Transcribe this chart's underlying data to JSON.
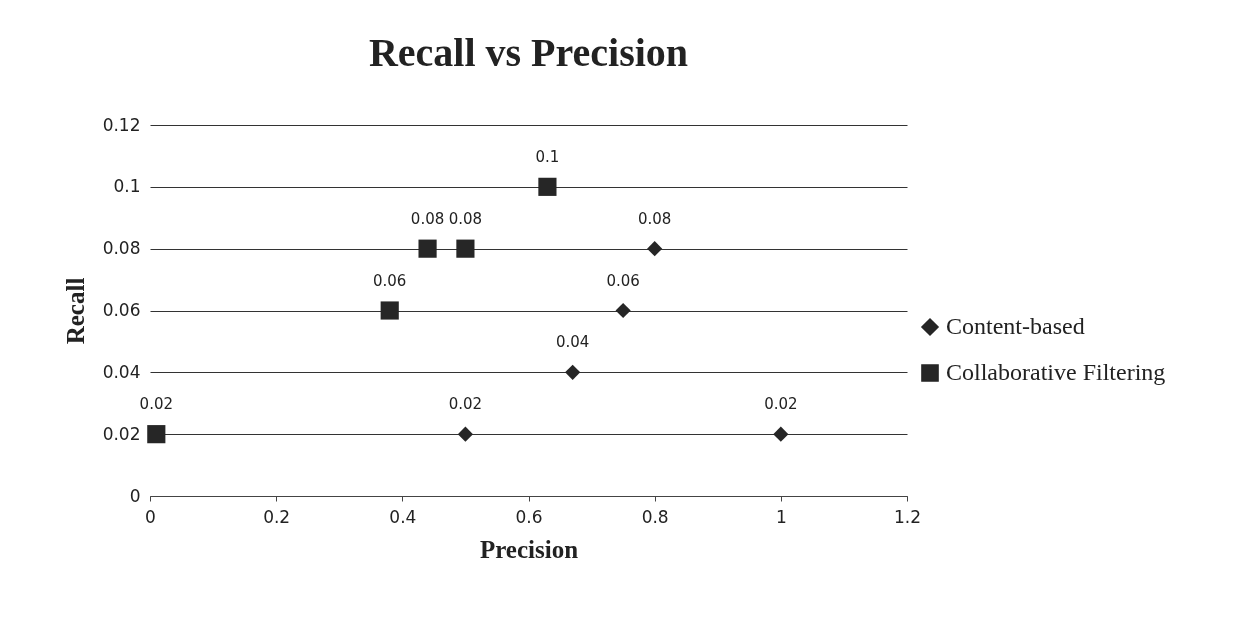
{
  "chart_data": {
    "type": "scatter",
    "title": "Recall vs Precision",
    "xlabel": "Precision",
    "ylabel": "Recall",
    "xlim": [
      0,
      1.2
    ],
    "xticks": [
      0,
      0.2,
      0.4,
      0.6,
      0.8,
      1,
      1.2
    ],
    "ylim": [
      0,
      0.12
    ],
    "yticks": [
      0,
      0.02,
      0.04,
      0.06,
      0.08,
      0.1,
      0.12
    ],
    "grid": "y",
    "legend": "right",
    "data_labels": true,
    "series": [
      {
        "name": "Content-based",
        "color": "#262626",
        "marker": "diamond",
        "x": [
          0.5,
          1.0,
          0.67,
          0.75,
          0.8
        ],
        "values": [
          0.02,
          0.02,
          0.04,
          0.06,
          0.08
        ]
      },
      {
        "name": "Collaborative Filtering",
        "color": "#262626",
        "marker": "square",
        "x": [
          0.01,
          0.38,
          0.44,
          0.5,
          0.63
        ],
        "values": [
          0.02,
          0.06,
          0.08,
          0.08,
          0.1
        ]
      }
    ]
  }
}
